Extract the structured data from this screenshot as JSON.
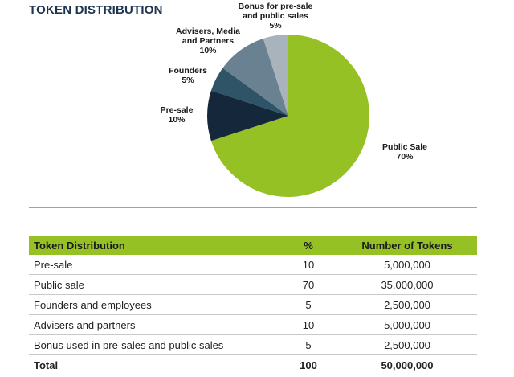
{
  "title": "TOKEN DISTRIBUTION",
  "colors": {
    "accent": "#95c125",
    "title": "#1e3550"
  },
  "chart_data": {
    "type": "pie",
    "title": "TOKEN DISTRIBUTION",
    "slices": [
      {
        "label": "Public Sale",
        "value": 70,
        "value_label": "70%",
        "color": "#95c125"
      },
      {
        "label": "Pre-sale",
        "value": 10,
        "value_label": "10%",
        "color": "#14273b"
      },
      {
        "label": "Founders",
        "value": 5,
        "value_label": "5%",
        "color": "#2f5468"
      },
      {
        "label": "Advisers, Media and Partners",
        "value": 10,
        "value_label": "10%",
        "color": "#6a8191"
      },
      {
        "label": "Bonus for pre-sale and public sales",
        "value": 5,
        "value_label": "5%",
        "color": "#a8b3bb"
      }
    ],
    "label_lines": [
      [
        "Public Sale",
        "70%"
      ],
      [
        "Pre-sale",
        "10%"
      ],
      [
        "Founders",
        "5%"
      ],
      [
        "Advisers, Media",
        "and Partners",
        "10%"
      ],
      [
        "Bonus for pre-sale",
        "and public sales",
        "5%"
      ]
    ]
  },
  "table": {
    "headers": [
      "Token Distribution",
      "%",
      "Number of Tokens"
    ],
    "rows": [
      [
        "Pre-sale",
        "10",
        "5,000,000"
      ],
      [
        "Public sale",
        "70",
        "35,000,000"
      ],
      [
        "Founders and employees",
        "5",
        "2,500,000"
      ],
      [
        "Advisers and partners",
        "10",
        "5,000,000"
      ],
      [
        "Bonus used in pre-sales and public sales",
        "5",
        "2,500,000"
      ]
    ],
    "total": [
      "Total",
      "100",
      "50,000,000"
    ]
  }
}
